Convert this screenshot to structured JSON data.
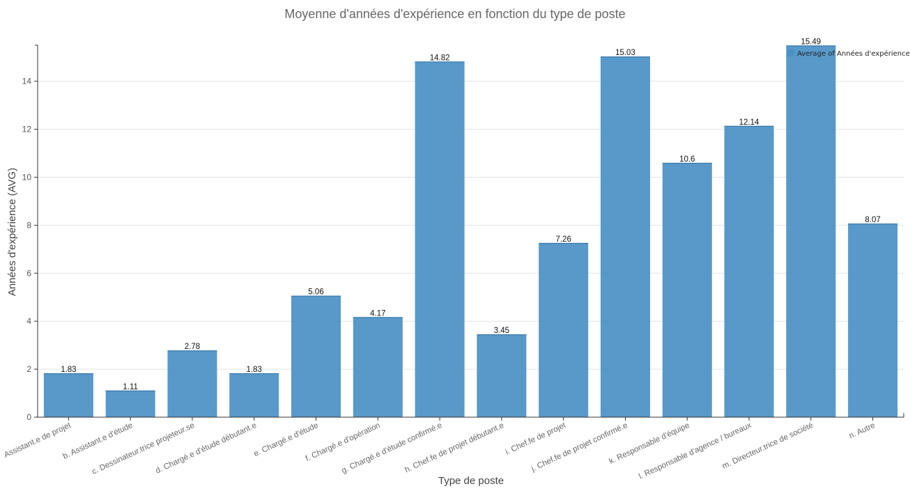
{
  "chart_data": {
    "type": "bar",
    "title": "Moyenne d'années d'expérience en fonction du type de poste",
    "xlabel": "Type de poste",
    "ylabel": "Années d'expérience (AVG)",
    "ylim": [
      0,
      15.5
    ],
    "yticks": [
      0,
      2,
      4,
      6,
      8,
      10,
      12,
      14
    ],
    "grid": true,
    "legend_position": "top-right",
    "series": [
      {
        "name": "Average of Années d'expérience",
        "color": "#4a90c4"
      }
    ],
    "categories": [
      "Assistant.e de projet",
      "b. Assistant.e d'étude",
      "c. Dessinateur.trice projeteur.se",
      "d. Chargé.e d'étude débutant.e",
      "e. Chargé.e d'étude",
      "f. Chargé.e d'opération",
      "g. Chargé.e d'étude confirmé.e",
      "h. Chef.fe de projet débutant.e",
      "i. Chef.fe de projet",
      "j. Chef.fe de projet confirmé.e",
      "k. Responsable d'équipe",
      "l. Responsable d'agence / bureaux",
      "m. Directeur.trice de société",
      "n. Autre"
    ],
    "values": [
      1.83,
      1.11,
      2.78,
      1.83,
      5.06,
      4.17,
      14.82,
      3.45,
      7.26,
      15.03,
      10.6,
      12.14,
      15.49,
      8.07
    ],
    "value_labels": [
      "1.83",
      "1.11",
      "2.78",
      "1.83",
      "5.06",
      "4.17",
      "14.82",
      "3.45",
      "7.26",
      "15.03",
      "10.6",
      "12.14",
      "15.49",
      "8.07"
    ]
  }
}
